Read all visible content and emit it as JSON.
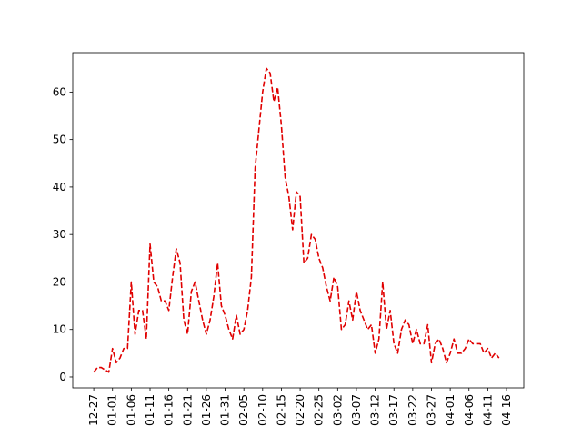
{
  "chart_data": {
    "type": "line",
    "title": "",
    "xlabel": "",
    "ylabel": "",
    "x_ticks": [
      "12-27",
      "01-01",
      "01-06",
      "01-11",
      "01-16",
      "01-21",
      "01-26",
      "01-31",
      "02-05",
      "02-10",
      "02-15",
      "02-20",
      "02-25",
      "03-02",
      "03-07",
      "03-12",
      "03-17",
      "03-22",
      "03-27",
      "04-01",
      "04-06",
      "04-11",
      "04-16"
    ],
    "x_tick_offsets_days": [
      0,
      5,
      10,
      15,
      20,
      25,
      30,
      35,
      40,
      45,
      50,
      55,
      60,
      65,
      70,
      75,
      80,
      85,
      90,
      95,
      100,
      105,
      110
    ],
    "y_ticks": [
      0,
      10,
      20,
      30,
      40,
      50,
      60
    ],
    "ylim": [
      -2.3,
      68.3
    ],
    "grid": false,
    "series": [
      {
        "name": "",
        "color": "#e00000",
        "style": "dashed",
        "values": [
          1,
          2,
          2,
          1.5,
          1,
          6,
          3,
          4,
          6,
          6,
          20,
          9,
          14,
          14,
          8,
          28,
          20,
          19,
          16,
          16,
          14,
          21,
          27,
          24,
          12,
          9,
          18,
          20,
          16,
          12,
          9,
          12,
          17,
          24,
          15,
          13,
          10,
          8,
          13,
          9,
          10,
          14,
          21,
          44,
          52,
          60,
          65,
          64,
          58,
          61,
          53,
          42,
          38,
          31,
          39,
          38,
          24,
          25,
          30,
          29,
          25,
          23,
          19,
          16,
          21,
          19,
          10,
          11,
          16,
          12,
          18,
          14,
          12,
          10,
          11,
          5,
          8,
          20,
          10,
          14,
          7,
          5,
          10,
          12,
          11,
          7,
          10,
          7,
          7,
          11,
          3,
          7,
          8,
          6,
          3,
          5,
          8,
          5,
          5,
          6,
          8,
          7,
          7,
          7,
          5,
          6,
          4,
          5,
          4
        ]
      }
    ]
  }
}
